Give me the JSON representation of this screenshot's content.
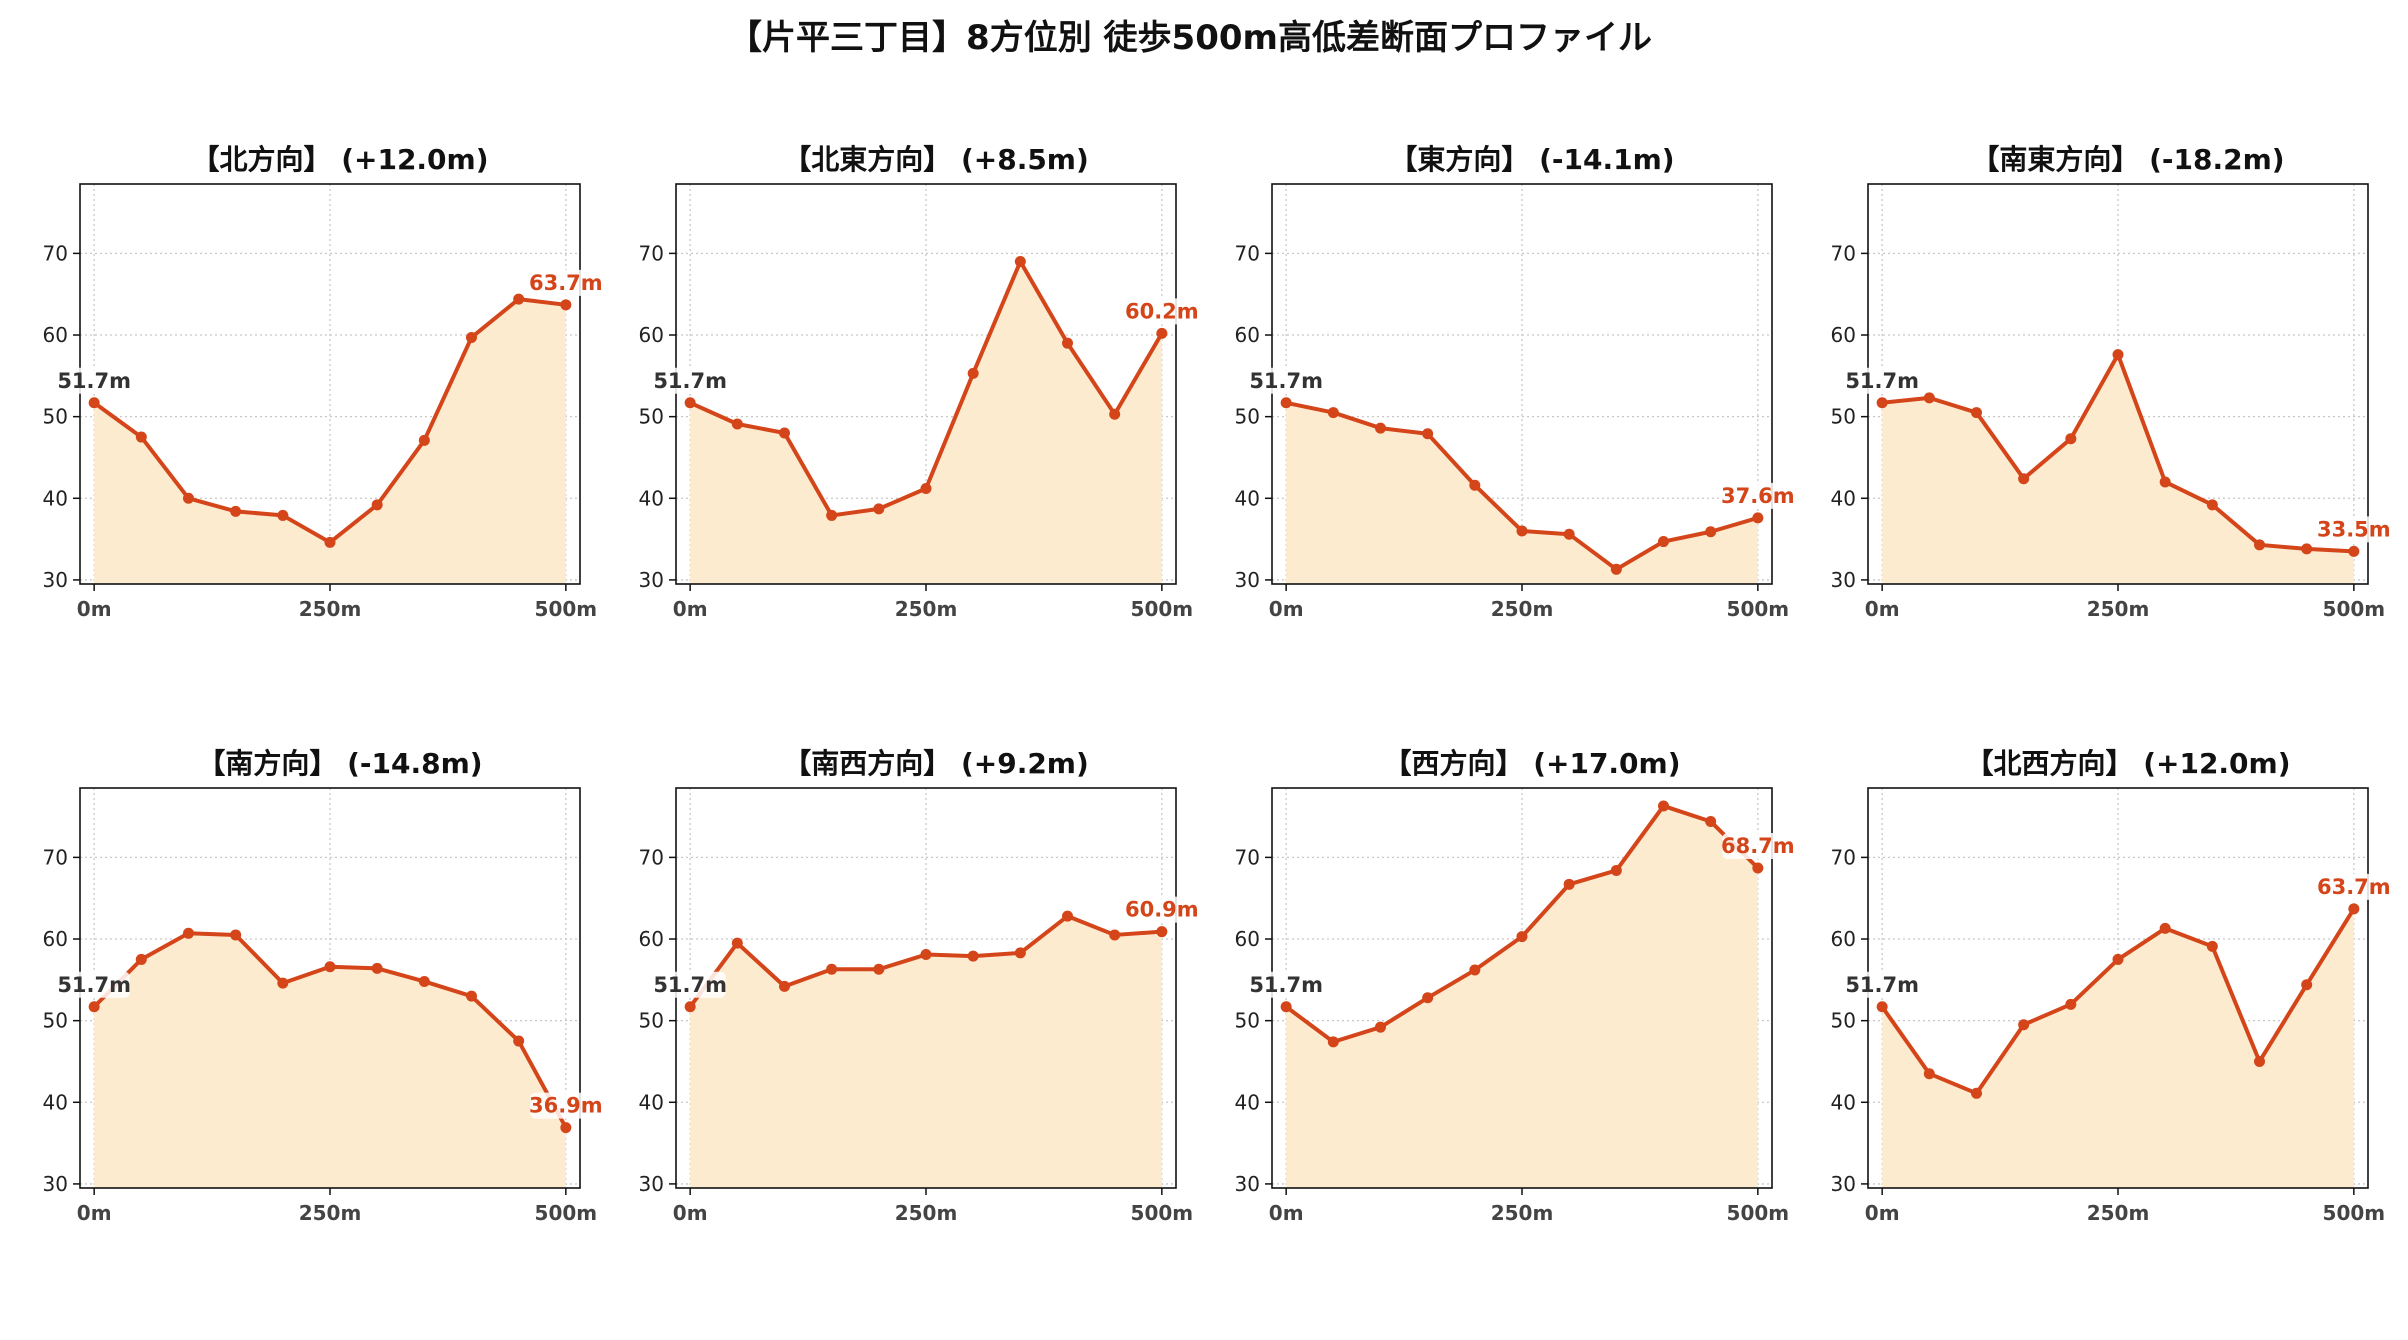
{
  "suptitle": "【片平三丁目】8方位別 徒歩500m高低差断面プロファイル",
  "colors": {
    "line": "#d4451a",
    "fill": "#fdebd0",
    "start_label": "#333333",
    "end_label": "#d4451a",
    "grid": "#c8c8c8"
  },
  "chart_data": [
    {
      "type": "area",
      "title": "【北方向】 (+12.0m)",
      "x": [
        0,
        50,
        100,
        150,
        200,
        250,
        300,
        350,
        400,
        450,
        500
      ],
      "values": [
        51.7,
        47.5,
        40.0,
        38.4,
        37.9,
        34.6,
        39.2,
        47.1,
        59.7,
        64.4,
        63.7
      ],
      "start_label": "51.7m",
      "end_label": "63.7m",
      "xticks": [
        0,
        250,
        500
      ],
      "xtick_labels": [
        "0m",
        "250m",
        "500m"
      ],
      "yticks": [
        30,
        40,
        50,
        60,
        70
      ],
      "xlim": [
        -15,
        515
      ],
      "ylim": [
        29.5,
        78.5
      ],
      "grid": true
    },
    {
      "type": "area",
      "title": "【北東方向】 (+8.5m)",
      "x": [
        0,
        50,
        100,
        150,
        200,
        250,
        300,
        350,
        400,
        450,
        500
      ],
      "values": [
        51.7,
        49.1,
        48.0,
        37.9,
        38.7,
        41.2,
        55.3,
        69.0,
        59.0,
        50.3,
        60.2
      ],
      "start_label": "51.7m",
      "end_label": "60.2m",
      "xticks": [
        0,
        250,
        500
      ],
      "xtick_labels": [
        "0m",
        "250m",
        "500m"
      ],
      "yticks": [
        30,
        40,
        50,
        60,
        70
      ],
      "xlim": [
        -15,
        515
      ],
      "ylim": [
        29.5,
        78.5
      ],
      "grid": true
    },
    {
      "type": "area",
      "title": "【東方向】 (-14.1m)",
      "x": [
        0,
        50,
        100,
        150,
        200,
        250,
        300,
        350,
        400,
        450,
        500
      ],
      "values": [
        51.7,
        50.5,
        48.6,
        47.9,
        41.6,
        36.0,
        35.6,
        31.3,
        34.7,
        35.9,
        37.6
      ],
      "start_label": "51.7m",
      "end_label": "37.6m",
      "xticks": [
        0,
        250,
        500
      ],
      "xtick_labels": [
        "0m",
        "250m",
        "500m"
      ],
      "yticks": [
        30,
        40,
        50,
        60,
        70
      ],
      "xlim": [
        -15,
        515
      ],
      "ylim": [
        29.5,
        78.5
      ],
      "grid": true
    },
    {
      "type": "area",
      "title": "【南東方向】 (-18.2m)",
      "x": [
        0,
        50,
        100,
        150,
        200,
        250,
        300,
        350,
        400,
        450,
        500
      ],
      "values": [
        51.7,
        52.3,
        50.5,
        42.4,
        47.3,
        57.6,
        42.0,
        39.2,
        34.3,
        33.8,
        33.5
      ],
      "start_label": "51.7m",
      "end_label": "33.5m",
      "xticks": [
        0,
        250,
        500
      ],
      "xtick_labels": [
        "0m",
        "250m",
        "500m"
      ],
      "yticks": [
        30,
        40,
        50,
        60,
        70
      ],
      "xlim": [
        -15,
        515
      ],
      "ylim": [
        29.5,
        78.5
      ],
      "grid": true
    },
    {
      "type": "area",
      "title": "【南方向】 (-14.8m)",
      "x": [
        0,
        50,
        100,
        150,
        200,
        250,
        300,
        350,
        400,
        450,
        500
      ],
      "values": [
        51.7,
        57.5,
        60.7,
        60.5,
        54.6,
        56.6,
        56.4,
        54.8,
        53.0,
        47.5,
        36.9
      ],
      "start_label": "51.7m",
      "end_label": "36.9m",
      "xticks": [
        0,
        250,
        500
      ],
      "xtick_labels": [
        "0m",
        "250m",
        "500m"
      ],
      "yticks": [
        30,
        40,
        50,
        60,
        70
      ],
      "xlim": [
        -15,
        515
      ],
      "ylim": [
        29.5,
        78.5
      ],
      "grid": true
    },
    {
      "type": "area",
      "title": "【南西方向】 (+9.2m)",
      "x": [
        0,
        50,
        100,
        150,
        200,
        250,
        300,
        350,
        400,
        450,
        500
      ],
      "values": [
        51.7,
        59.5,
        54.2,
        56.3,
        56.3,
        58.1,
        57.9,
        58.3,
        62.8,
        60.5,
        60.9
      ],
      "start_label": "51.7m",
      "end_label": "60.9m",
      "xticks": [
        0,
        250,
        500
      ],
      "xtick_labels": [
        "0m",
        "250m",
        "500m"
      ],
      "yticks": [
        30,
        40,
        50,
        60,
        70
      ],
      "xlim": [
        -15,
        515
      ],
      "ylim": [
        29.5,
        78.5
      ],
      "grid": true
    },
    {
      "type": "area",
      "title": "【西方向】 (+17.0m)",
      "x": [
        0,
        50,
        100,
        150,
        200,
        250,
        300,
        350,
        400,
        450,
        500
      ],
      "values": [
        51.7,
        47.4,
        49.2,
        52.8,
        56.2,
        60.3,
        66.7,
        68.4,
        76.3,
        74.4,
        68.7
      ],
      "start_label": "51.7m",
      "end_label": "68.7m",
      "xticks": [
        0,
        250,
        500
      ],
      "xtick_labels": [
        "0m",
        "250m",
        "500m"
      ],
      "yticks": [
        30,
        40,
        50,
        60,
        70
      ],
      "xlim": [
        -15,
        515
      ],
      "ylim": [
        29.5,
        78.5
      ],
      "grid": true
    },
    {
      "type": "area",
      "title": "【北西方向】 (+12.0m)",
      "x": [
        0,
        50,
        100,
        150,
        200,
        250,
        300,
        350,
        400,
        450,
        500
      ],
      "values": [
        51.7,
        43.5,
        41.1,
        49.5,
        52.0,
        57.5,
        61.3,
        59.1,
        45.0,
        54.4,
        63.7
      ],
      "start_label": "51.7m",
      "end_label": "63.7m",
      "xticks": [
        0,
        250,
        500
      ],
      "xtick_labels": [
        "0m",
        "250m",
        "500m"
      ],
      "yticks": [
        30,
        40,
        50,
        60,
        70
      ],
      "xlim": [
        -15,
        515
      ],
      "ylim": [
        29.5,
        78.5
      ],
      "grid": true
    }
  ]
}
